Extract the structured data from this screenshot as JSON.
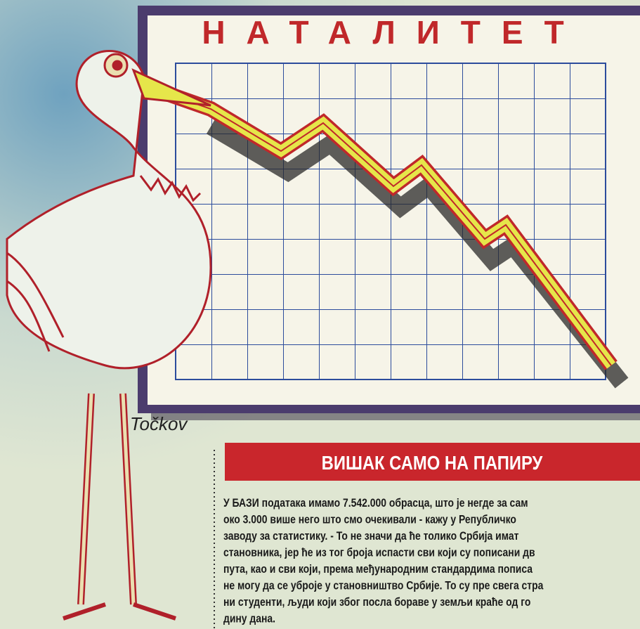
{
  "illustration": {
    "board_title": "НАТАЛИТЕТ",
    "signature": "Točkov"
  },
  "article": {
    "headline": "ВИШАК САМО НА ПАПИРУ",
    "lines": [
      "У БАЗИ података имамо 7.542.000 обрасца, што је негде за сам",
      "око 3.000 више него што смо очекивали - кажу у Републичко",
      "заводу за статистику. - То не значи да ће толико Србија имат",
      "становника, јер ће из тог броја испасти сви који су пописани дв",
      "пута, као и сви који, према међународним стандардима пописа",
      "не могу да се уброје у становништво Србије. То су пре свега стра",
      "ни студенти, људи који због посла бораве у земљи краће од го",
      "дину дана."
    ]
  }
}
